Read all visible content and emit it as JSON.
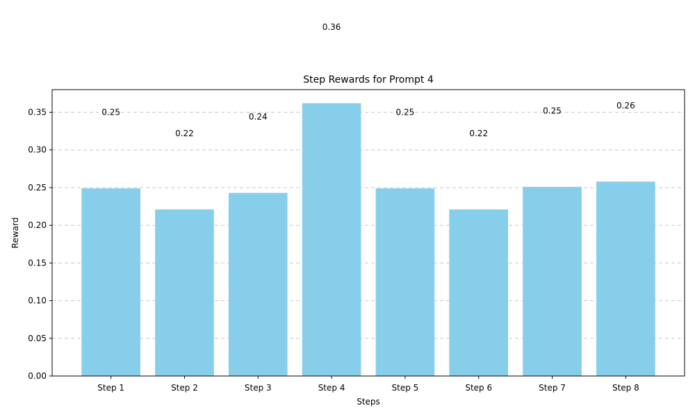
{
  "chart_data": {
    "type": "bar",
    "title": "Step Rewards for Prompt 4",
    "xlabel": "Steps",
    "ylabel": "Reward",
    "categories": [
      "Step 1",
      "Step 2",
      "Step 3",
      "Step 4",
      "Step 5",
      "Step 6",
      "Step 7",
      "Step 8"
    ],
    "values": [
      0.249,
      0.221,
      0.243,
      0.362,
      0.249,
      0.221,
      0.251,
      0.258
    ],
    "data_labels": [
      "0.25",
      "0.22",
      "0.24",
      "0.36",
      "0.25",
      "0.22",
      "0.25",
      "0.26"
    ],
    "data_label_y": [
      0.35,
      0.322,
      0.344,
      0.463,
      0.35,
      0.322,
      0.352,
      0.359
    ],
    "ylim": [
      0,
      0.38
    ],
    "yticks": [
      0.0,
      0.05,
      0.1,
      0.15,
      0.2,
      0.25,
      0.3,
      0.35
    ],
    "ytick_labels": [
      "0.00",
      "0.05",
      "0.10",
      "0.15",
      "0.20",
      "0.25",
      "0.30",
      "0.35"
    ],
    "grid": "y-dashed",
    "bar_color": "#87ceeb"
  }
}
